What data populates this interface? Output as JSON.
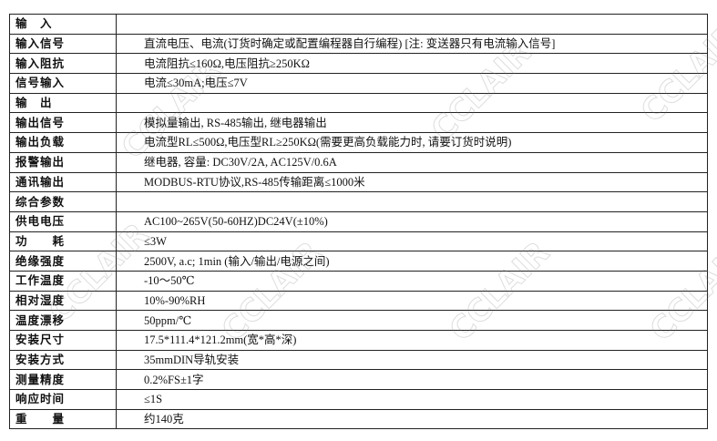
{
  "table": {
    "rows": [
      {
        "label": "输　入"
      },
      {
        "label": "输入信号",
        "value": "直流电压、电流(订货时确定或配置编程器自行编程) [注: 变送器只有电流输入信号]"
      },
      {
        "label": "输入阻抗",
        "value": "电流阻抗≤160Ω,电压阻抗≥250KΩ"
      },
      {
        "label": "信号输入",
        "value": "电流≤30mA;电压≤7V"
      },
      {
        "label": "输　出"
      },
      {
        "label": "输出信号",
        "value": "模拟量输出, RS-485输出, 继电器输出"
      },
      {
        "label": "输出负载",
        "value": "电流型RL≤500Ω,电压型RL≥250KΩ(需要更高负载能力时, 请要订货时说明)"
      },
      {
        "label": "报警输出",
        "value": "继电器, 容量: DC30V/2A, AC125V/0.6A"
      },
      {
        "label": "通讯输出",
        "value": "MODBUS-RTU协议,RS-485传输距离≤1000米"
      },
      {
        "label": "综合参数"
      },
      {
        "label": "供电电压",
        "value": "AC100~265V(50-60HZ)DC24V(±10%)"
      },
      {
        "label": "功　　耗",
        "value": "≤3W"
      },
      {
        "label": "绝缘强度",
        "value": "2500V, a.c; 1min (输入/输出/电源之间)"
      },
      {
        "label": "工作温度",
        "value": "-10～50℃"
      },
      {
        "label": "相对湿度",
        "value": "10%-90%RH"
      },
      {
        "label": "温度漂移",
        "value": "50ppm/℃"
      },
      {
        "label": "安装尺寸",
        "value": "17.5*111.4*121.2mm(宽*高*深)"
      },
      {
        "label": "安装方式",
        "value": "35mmDIN导轨安装"
      },
      {
        "label": "测量精度",
        "value": "0.2%FS±1字"
      },
      {
        "label": "响应时间",
        "value": "≤1S"
      },
      {
        "label": "重　　量",
        "value": "约140克"
      }
    ]
  },
  "watermark": "CCLAIR"
}
